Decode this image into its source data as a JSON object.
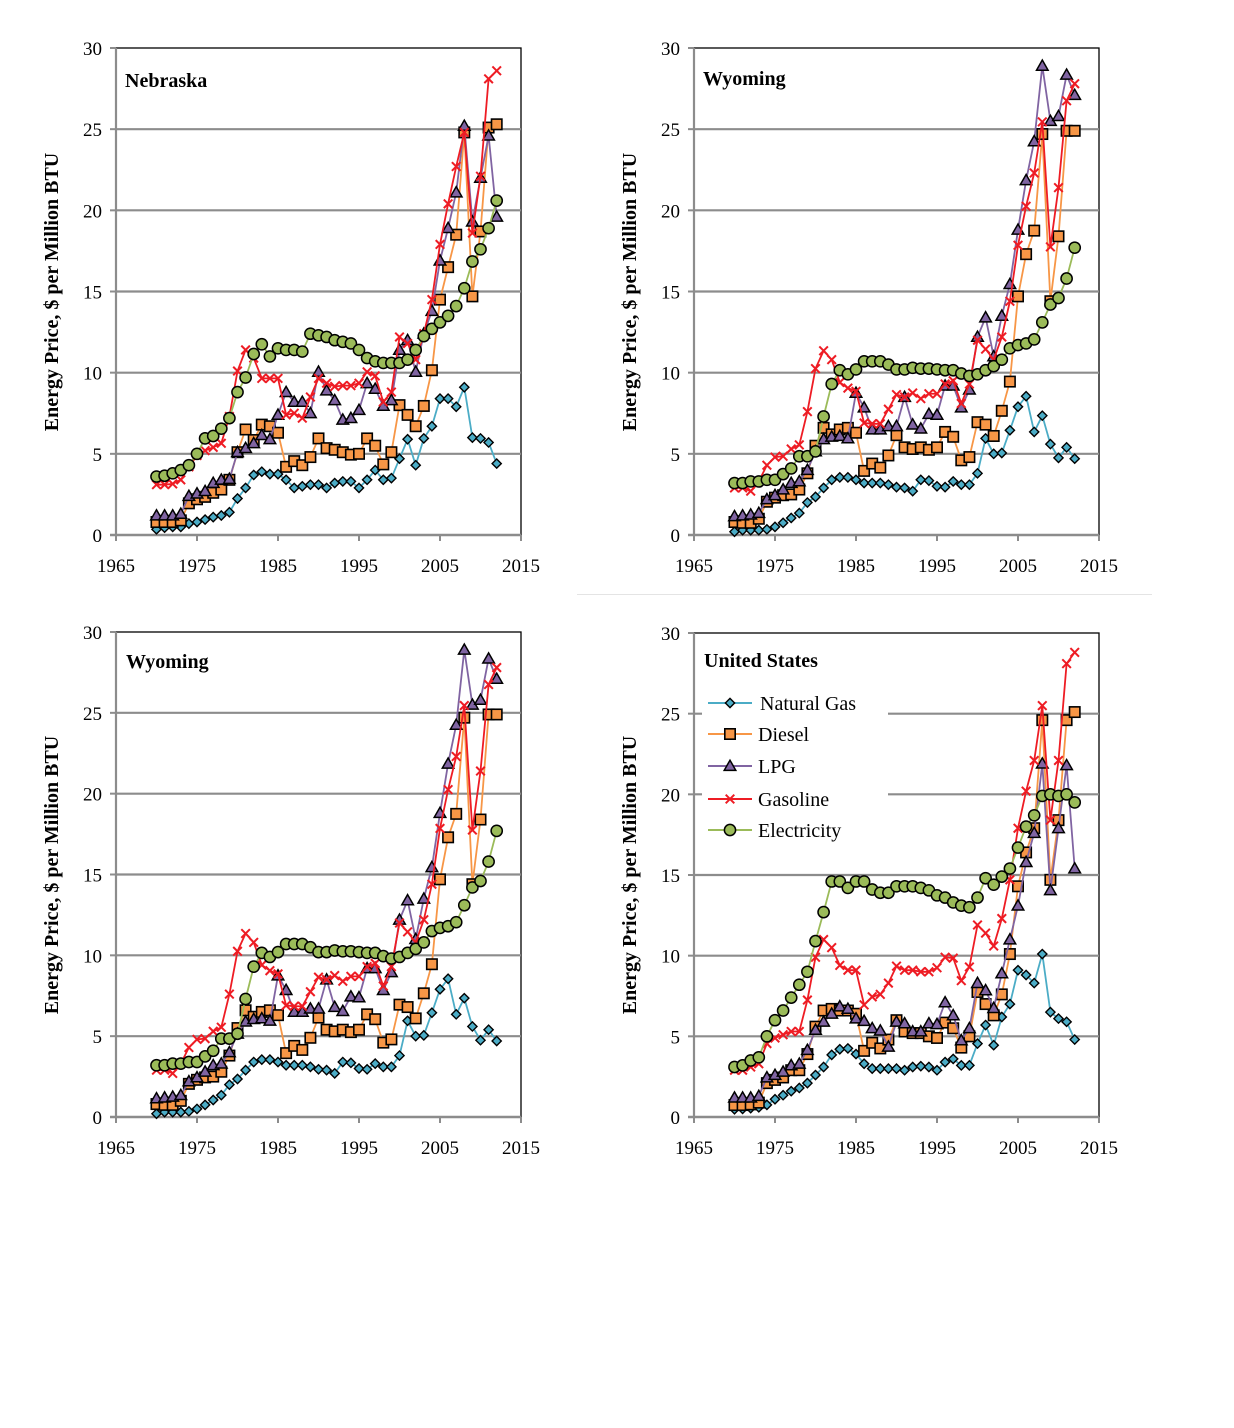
{
  "series_styles": [
    {
      "name": "Natural Gas",
      "color": "#4bacc6",
      "marker": "diamond",
      "fill": "#4bacc6"
    },
    {
      "name": "Diesel",
      "color": "#f79646",
      "marker": "square",
      "fill": "#f79646"
    },
    {
      "name": "LPG",
      "color": "#8064a2",
      "marker": "triangle",
      "fill": "#8064a2"
    },
    {
      "name": "Gasoline",
      "color": "#ee1c24",
      "marker": "x",
      "fill": "#ee1c24"
    },
    {
      "name": "Electricity",
      "color": "#9bbb59",
      "marker": "circle",
      "fill": "#9bbb59"
    }
  ],
  "chart_data": [
    {
      "type": "line",
      "title": "Nebraska",
      "xlabel": "",
      "ylabel": "Energy Price, $ per Million BTU",
      "xlim": [
        1965,
        2015
      ],
      "ylim": [
        0,
        30
      ],
      "xticks": [
        1965,
        1975,
        1985,
        1995,
        2005,
        2015
      ],
      "yticks": [
        0,
        5,
        10,
        15,
        20,
        25,
        30
      ],
      "grid": true,
      "legend": null,
      "x_start": 1970,
      "series": [
        {
          "name": "Natural Gas",
          "values": [
            0.35,
            0.45,
            0.5,
            0.5,
            0.7,
            0.8,
            0.95,
            1.1,
            1.2,
            1.4,
            2.25,
            2.9,
            3.7,
            3.9,
            3.75,
            3.75,
            3.4,
            2.9,
            3.0,
            3.1,
            3.1,
            2.9,
            3.2,
            3.3,
            3.3,
            2.9,
            3.4,
            4.0,
            3.4,
            3.5,
            4.7,
            5.9,
            4.3,
            5.95,
            6.7,
            8.4,
            8.4,
            7.9,
            9.1,
            6.0,
            5.95,
            5.7,
            4.4
          ]
        },
        {
          "name": "Diesel",
          "values": [
            0.8,
            0.8,
            0.8,
            0.9,
            1.95,
            2.2,
            2.35,
            2.6,
            2.8,
            3.4,
            5.1,
            6.5,
            5.85,
            6.8,
            6.7,
            6.3,
            4.2,
            4.55,
            4.3,
            4.8,
            5.95,
            5.35,
            5.25,
            5.1,
            4.95,
            5.0,
            5.95,
            5.5,
            4.35,
            5.1,
            8.0,
            7.4,
            6.7,
            7.95,
            10.15,
            14.5,
            16.5,
            18.5,
            24.8,
            14.7,
            18.7,
            25.1,
            25.3
          ]
        },
        {
          "name": "LPG",
          "values": [
            1.2,
            1.2,
            1.2,
            1.3,
            2.4,
            2.55,
            2.7,
            3.2,
            3.4,
            3.45,
            5.1,
            5.35,
            5.65,
            6.15,
            5.9,
            7.4,
            8.8,
            8.2,
            8.2,
            7.5,
            10.05,
            8.9,
            8.3,
            7.1,
            7.2,
            7.7,
            9.35,
            9.0,
            7.95,
            8.3,
            11.4,
            12.0,
            10.05,
            12.4,
            13.8,
            16.9,
            18.9,
            21.1,
            25.2,
            19.3,
            22.0,
            24.6,
            19.6
          ]
        },
        {
          "name": "Gasoline",
          "values": [
            3.1,
            3.1,
            3.15,
            3.4,
            4.2,
            4.9,
            5.2,
            5.4,
            5.65,
            7.3,
            10.1,
            11.4,
            10.9,
            9.65,
            9.65,
            9.65,
            7.4,
            7.5,
            7.2,
            8.5,
            9.65,
            9.35,
            9.15,
            9.2,
            9.2,
            9.35,
            10.05,
            9.8,
            8.2,
            8.8,
            12.2,
            11.8,
            10.8,
            12.4,
            14.5,
            17.9,
            20.4,
            22.7,
            24.8,
            18.6,
            22.1,
            28.1,
            28.6
          ]
        },
        {
          "name": "Electricity",
          "values": [
            3.6,
            3.65,
            3.8,
            4.0,
            4.3,
            5.0,
            5.95,
            6.1,
            6.55,
            7.2,
            8.8,
            9.7,
            11.15,
            11.75,
            11.0,
            11.5,
            11.4,
            11.4,
            11.3,
            12.4,
            12.3,
            12.2,
            12.0,
            11.9,
            11.8,
            11.4,
            10.9,
            10.7,
            10.6,
            10.6,
            10.6,
            10.8,
            11.4,
            12.25,
            12.7,
            13.1,
            13.5,
            14.1,
            15.2,
            16.85,
            17.6,
            18.9,
            20.6
          ]
        }
      ]
    },
    {
      "type": "line",
      "title": "Wyoming",
      "xlabel": "",
      "ylabel": "Energy Price, $ per Million BTU",
      "xlim": [
        1965,
        2015
      ],
      "ylim": [
        0,
        30
      ],
      "xticks": [
        1965,
        1975,
        1985,
        1995,
        2005,
        2015
      ],
      "yticks": [
        0,
        5,
        10,
        15,
        20,
        25,
        30
      ],
      "grid": true,
      "legend": null,
      "x_start": 1970,
      "series": [
        {
          "name": "Natural Gas",
          "values": [
            0.2,
            0.3,
            0.3,
            0.3,
            0.35,
            0.5,
            0.75,
            1.05,
            1.35,
            2.0,
            2.35,
            2.9,
            3.4,
            3.55,
            3.55,
            3.4,
            3.2,
            3.2,
            3.2,
            3.1,
            2.95,
            2.9,
            2.7,
            3.4,
            3.35,
            3.0,
            2.95,
            3.3,
            3.1,
            3.1,
            3.8,
            5.95,
            5.0,
            5.05,
            6.45,
            7.9,
            8.55,
            6.35,
            7.35,
            5.6,
            4.75,
            5.4,
            4.7
          ]
        },
        {
          "name": "Diesel",
          "values": [
            0.8,
            0.75,
            0.75,
            1.0,
            2.05,
            2.3,
            2.45,
            2.5,
            2.8,
            3.8,
            5.5,
            6.6,
            6.2,
            6.5,
            6.6,
            6.3,
            3.95,
            4.4,
            4.15,
            4.9,
            6.15,
            5.4,
            5.3,
            5.4,
            5.25,
            5.4,
            6.35,
            6.05,
            4.6,
            4.8,
            6.95,
            6.8,
            6.1,
            7.65,
            9.45,
            14.7,
            17.3,
            18.75,
            24.7,
            14.4,
            18.4,
            24.9,
            24.9
          ]
        },
        {
          "name": "LPG",
          "values": [
            1.15,
            1.2,
            1.25,
            1.35,
            2.2,
            2.45,
            2.8,
            3.2,
            3.3,
            4.0,
            5.15,
            5.9,
            6.05,
            6.1,
            5.95,
            8.75,
            7.85,
            6.5,
            6.5,
            6.7,
            6.7,
            8.5,
            6.8,
            6.55,
            7.45,
            7.4,
            9.2,
            9.2,
            7.85,
            8.95,
            12.2,
            13.4,
            11.0,
            13.5,
            15.45,
            18.8,
            21.85,
            24.25,
            28.9,
            25.5,
            25.8,
            28.35,
            27.1
          ]
        },
        {
          "name": "Gasoline",
          "values": [
            2.9,
            2.9,
            2.7,
            3.3,
            4.3,
            4.8,
            4.85,
            5.3,
            5.55,
            7.6,
            10.25,
            11.35,
            10.8,
            9.4,
            9.05,
            8.85,
            6.9,
            6.85,
            6.85,
            7.75,
            8.65,
            8.5,
            8.75,
            8.4,
            8.7,
            8.7,
            9.3,
            9.5,
            8.1,
            9.3,
            12.0,
            11.45,
            10.8,
            12.2,
            14.4,
            17.85,
            20.25,
            22.3,
            25.45,
            17.75,
            21.4,
            26.75,
            27.8
          ]
        },
        {
          "name": "Electricity",
          "values": [
            3.2,
            3.2,
            3.3,
            3.3,
            3.4,
            3.4,
            3.75,
            4.1,
            4.85,
            4.85,
            5.15,
            7.3,
            9.3,
            10.15,
            9.9,
            10.2,
            10.7,
            10.7,
            10.7,
            10.5,
            10.2,
            10.2,
            10.3,
            10.25,
            10.25,
            10.2,
            10.15,
            10.15,
            9.95,
            9.8,
            9.9,
            10.15,
            10.4,
            10.8,
            11.5,
            11.7,
            11.8,
            12.05,
            13.1,
            14.2,
            14.6,
            15.8,
            17.7
          ]
        }
      ]
    },
    {
      "type": "line",
      "title": "Wyoming",
      "xlabel": "",
      "ylabel": "Energy Price, $ per Million BTU",
      "xlim": [
        1965,
        2015
      ],
      "ylim": [
        0,
        30
      ],
      "xticks": [
        1965,
        1975,
        1985,
        1995,
        2005,
        2015
      ],
      "yticks": [
        0,
        5,
        10,
        15,
        20,
        25,
        30
      ],
      "grid": true,
      "legend": null,
      "x_start": 1970,
      "series": [
        {
          "name": "Natural Gas",
          "values": [
            0.2,
            0.3,
            0.3,
            0.3,
            0.35,
            0.5,
            0.75,
            1.05,
            1.35,
            2.0,
            2.35,
            2.9,
            3.4,
            3.55,
            3.55,
            3.4,
            3.2,
            3.2,
            3.2,
            3.1,
            2.95,
            2.9,
            2.7,
            3.4,
            3.35,
            3.0,
            2.95,
            3.3,
            3.1,
            3.1,
            3.8,
            5.95,
            5.0,
            5.05,
            6.45,
            7.9,
            8.55,
            6.35,
            7.35,
            5.6,
            4.75,
            5.4,
            4.7
          ]
        },
        {
          "name": "Diesel",
          "values": [
            0.8,
            0.75,
            0.75,
            1.0,
            2.05,
            2.3,
            2.45,
            2.5,
            2.8,
            3.8,
            5.5,
            6.6,
            6.2,
            6.5,
            6.6,
            6.3,
            3.95,
            4.4,
            4.15,
            4.9,
            6.15,
            5.4,
            5.3,
            5.4,
            5.25,
            5.4,
            6.35,
            6.05,
            4.6,
            4.8,
            6.95,
            6.8,
            6.1,
            7.65,
            9.45,
            14.7,
            17.3,
            18.75,
            24.7,
            14.4,
            18.4,
            24.9,
            24.9
          ]
        },
        {
          "name": "LPG",
          "values": [
            1.15,
            1.2,
            1.25,
            1.35,
            2.2,
            2.45,
            2.8,
            3.2,
            3.3,
            4.0,
            5.15,
            5.9,
            6.05,
            6.1,
            5.95,
            8.75,
            7.85,
            6.5,
            6.5,
            6.7,
            6.7,
            8.5,
            6.8,
            6.55,
            7.45,
            7.4,
            9.2,
            9.2,
            7.85,
            8.95,
            12.2,
            13.4,
            11.0,
            13.5,
            15.45,
            18.8,
            21.85,
            24.25,
            28.9,
            25.5,
            25.8,
            28.35,
            27.1
          ]
        },
        {
          "name": "Gasoline",
          "values": [
            2.9,
            2.9,
            2.7,
            3.3,
            4.3,
            4.8,
            4.85,
            5.3,
            5.55,
            7.6,
            10.25,
            11.35,
            10.8,
            9.4,
            9.05,
            8.85,
            6.9,
            6.85,
            6.85,
            7.75,
            8.65,
            8.5,
            8.75,
            8.4,
            8.7,
            8.7,
            9.3,
            9.5,
            8.1,
            9.3,
            12.0,
            11.45,
            10.8,
            12.2,
            14.4,
            17.85,
            20.25,
            22.3,
            25.45,
            17.75,
            21.4,
            26.75,
            27.8
          ]
        },
        {
          "name": "Electricity",
          "values": [
            3.2,
            3.2,
            3.3,
            3.3,
            3.4,
            3.4,
            3.75,
            4.1,
            4.85,
            4.85,
            5.15,
            7.3,
            9.3,
            10.15,
            9.9,
            10.2,
            10.7,
            10.7,
            10.7,
            10.5,
            10.2,
            10.2,
            10.3,
            10.25,
            10.25,
            10.2,
            10.15,
            10.15,
            9.95,
            9.8,
            9.9,
            10.15,
            10.4,
            10.8,
            11.5,
            11.7,
            11.8,
            12.05,
            13.1,
            14.2,
            14.6,
            15.8,
            17.7
          ]
        }
      ]
    },
    {
      "type": "line",
      "title": "United States",
      "xlabel": "",
      "ylabel": "Energy Price, $ per Million BTU",
      "xlim": [
        1965,
        2015
      ],
      "ylim": [
        0,
        30
      ],
      "xticks": [
        1965,
        1975,
        1985,
        1995,
        2005,
        2015
      ],
      "yticks": [
        0,
        5,
        10,
        15,
        20,
        25,
        30
      ],
      "grid": true,
      "legend": "top-left",
      "x_start": 1970,
      "series": [
        {
          "name": "Natural Gas",
          "values": [
            0.48,
            0.5,
            0.55,
            0.6,
            0.75,
            1.1,
            1.35,
            1.6,
            1.8,
            2.1,
            2.6,
            3.1,
            3.85,
            4.2,
            4.25,
            3.9,
            3.3,
            3.0,
            3.0,
            3.0,
            3.0,
            2.9,
            3.1,
            3.15,
            3.1,
            2.9,
            3.4,
            3.6,
            3.2,
            3.2,
            4.55,
            5.7,
            4.45,
            6.2,
            7.0,
            9.1,
            8.8,
            8.3,
            10.1,
            6.5,
            6.1,
            5.9,
            4.8
          ]
        },
        {
          "name": "Diesel",
          "values": [
            0.74,
            0.74,
            0.78,
            0.89,
            2.1,
            2.3,
            2.45,
            2.9,
            2.9,
            3.9,
            5.6,
            6.6,
            6.7,
            6.6,
            6.6,
            6.4,
            4.1,
            4.6,
            4.25,
            4.8,
            6.0,
            5.3,
            5.2,
            5.2,
            5.0,
            4.9,
            5.85,
            5.5,
            4.3,
            5.0,
            7.75,
            7.0,
            6.3,
            7.6,
            10.1,
            14.3,
            16.4,
            17.9,
            24.6,
            14.7,
            18.4,
            24.6,
            25.1
          ]
        },
        {
          "name": "LPG",
          "values": [
            1.2,
            1.2,
            1.2,
            1.3,
            2.45,
            2.6,
            2.8,
            3.2,
            3.3,
            4.15,
            5.4,
            5.9,
            6.4,
            6.85,
            6.7,
            6.1,
            5.95,
            5.5,
            5.35,
            4.35,
            5.9,
            5.8,
            5.3,
            5.3,
            5.8,
            5.75,
            7.1,
            6.3,
            4.75,
            5.5,
            8.3,
            7.85,
            6.75,
            8.9,
            11.0,
            13.1,
            15.8,
            17.6,
            21.9,
            14.05,
            17.9,
            21.8,
            15.4
          ]
        },
        {
          "name": "Gasoline",
          "values": [
            2.9,
            2.9,
            3.1,
            3.3,
            4.55,
            4.9,
            5.1,
            5.3,
            5.3,
            7.25,
            9.9,
            11.0,
            10.5,
            9.4,
            9.1,
            9.1,
            6.95,
            7.45,
            7.6,
            8.3,
            9.35,
            9.1,
            9.1,
            9.0,
            9.0,
            9.25,
            9.9,
            9.85,
            8.45,
            9.3,
            11.9,
            11.4,
            10.6,
            12.3,
            14.7,
            17.9,
            20.2,
            22.1,
            25.5,
            18.4,
            22.1,
            28.1,
            28.8
          ]
        },
        {
          "name": "Electricity",
          "values": [
            3.1,
            3.2,
            3.5,
            3.7,
            5.0,
            6.0,
            6.6,
            7.4,
            8.2,
            9.0,
            10.9,
            12.7,
            14.6,
            14.6,
            14.2,
            14.6,
            14.6,
            14.1,
            13.9,
            13.9,
            14.3,
            14.3,
            14.3,
            14.2,
            14.05,
            13.74,
            13.6,
            13.3,
            13.1,
            13.0,
            13.6,
            14.8,
            14.4,
            14.9,
            15.4,
            16.7,
            18.0,
            18.7,
            19.9,
            20.0,
            19.9,
            20.0,
            19.5
          ]
        }
      ]
    }
  ]
}
